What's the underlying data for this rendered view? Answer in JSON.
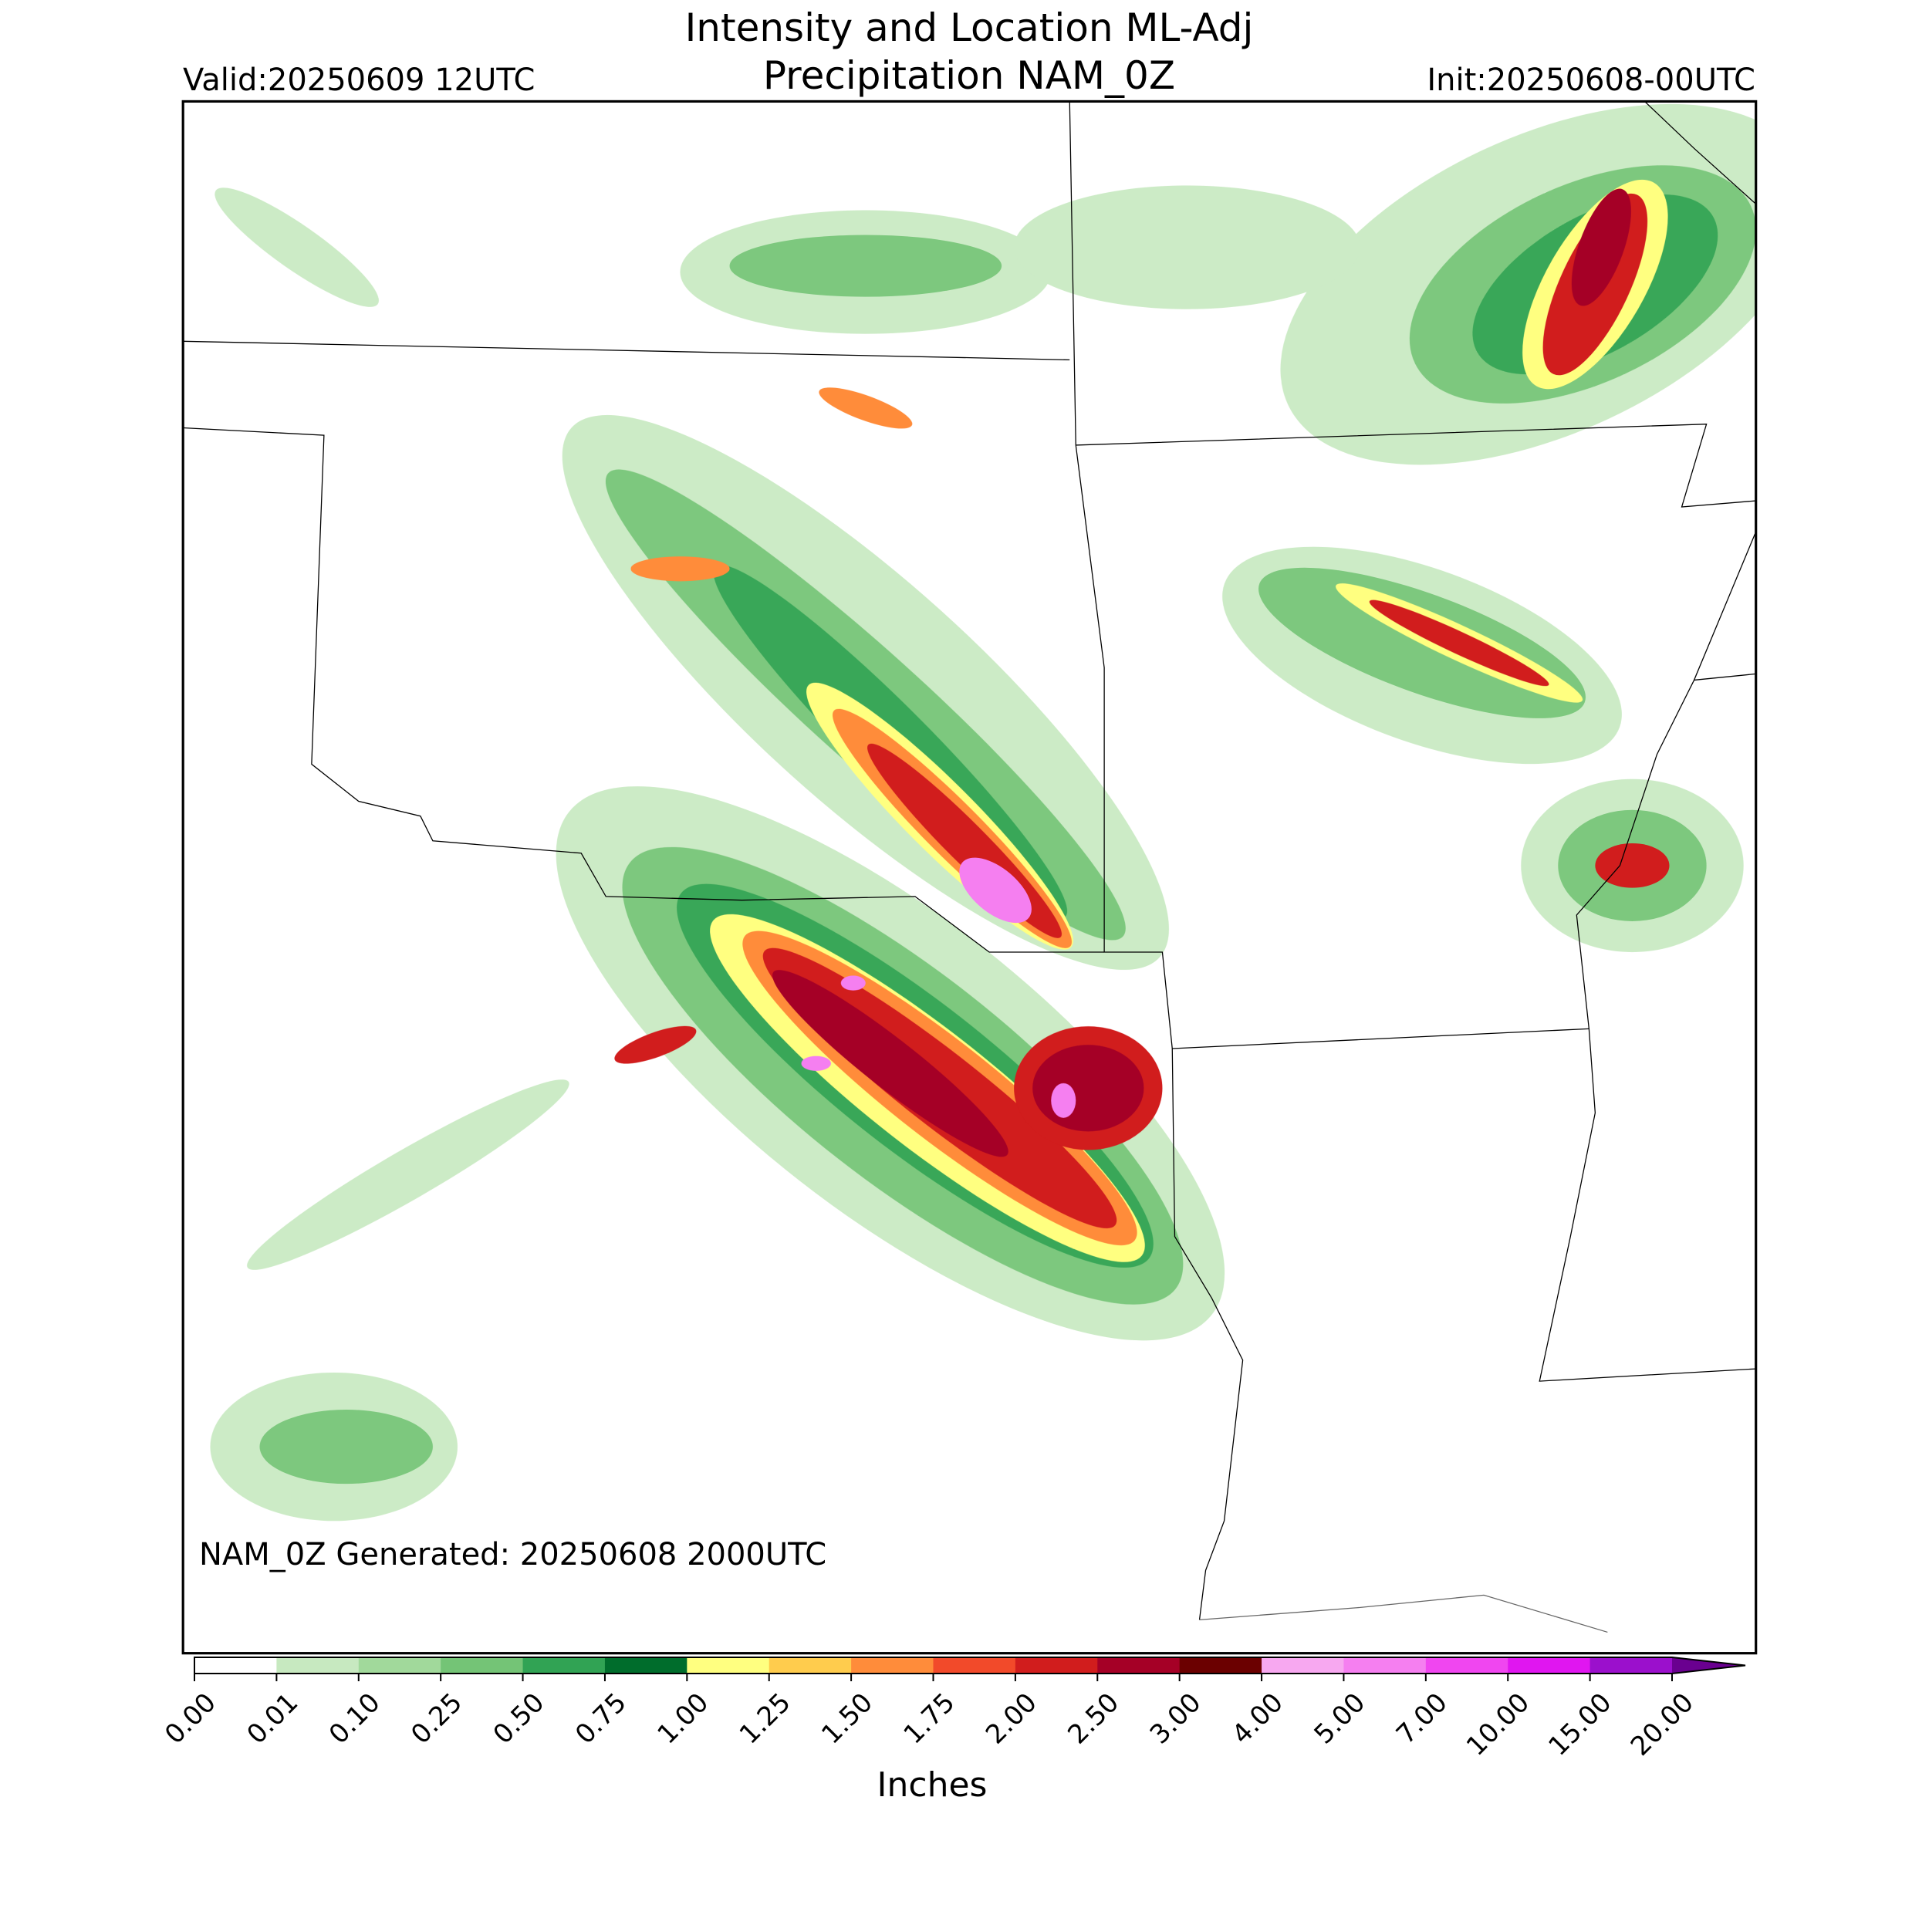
{
  "title": [
    "Intensity and Location ML-Adj",
    "Precipitation NAM_0Z"
  ],
  "valid": "Valid:20250609 12UTC",
  "init": "Init:20250608-00UTC",
  "generated": "NAM_0Z Generated: 20250608 2000UTC",
  "colorbar": {
    "label": "Inches",
    "ticks": [
      {
        "value": 0,
        "label": "0.00"
      },
      {
        "value": 0.01,
        "label": "0.01"
      },
      {
        "value": 0.1,
        "label": "0.10"
      },
      {
        "value": 0.25,
        "label": "0.25"
      },
      {
        "value": 0.5,
        "label": "0.50"
      },
      {
        "value": 0.75,
        "label": "0.75"
      },
      {
        "value": 1,
        "label": "1.00"
      },
      {
        "value": 1.25,
        "label": "1.25"
      },
      {
        "value": 1.5,
        "label": "1.50"
      },
      {
        "value": 1.75,
        "label": "1.75"
      },
      {
        "value": 2,
        "label": "2.00"
      },
      {
        "value": 2.5,
        "label": "2.50"
      },
      {
        "value": 3,
        "label": "3.00"
      },
      {
        "value": 4,
        "label": "4.00"
      },
      {
        "value": 5,
        "label": "5.00"
      },
      {
        "value": 7,
        "label": "7.00"
      },
      {
        "value": 10,
        "label": "10.00"
      },
      {
        "value": 15,
        "label": "15.00"
      },
      {
        "value": 20,
        "label": "20.00"
      }
    ],
    "colors": [
      "#ffffff",
      "#c7e9c0",
      "#a1d99b",
      "#74c476",
      "#31a354",
      "#006d2c",
      "#ffff80",
      "#ffcc4d",
      "#ff8c3a",
      "#f24a2a",
      "#d11d1d",
      "#a50026",
      "#6b0000",
      "#f7a8f0",
      "#f57ff0",
      "#f046f0",
      "#e016f0",
      "#9b10cc"
    ],
    "extend_color": "#6a0090"
  }
}
